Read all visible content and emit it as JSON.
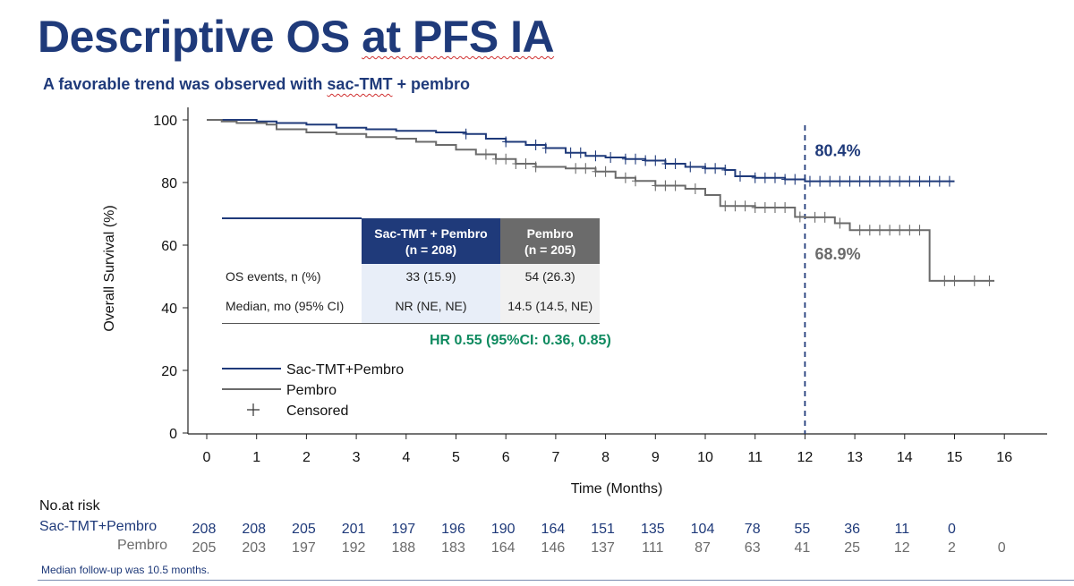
{
  "slide": {
    "title_part1": "Descriptive OS ",
    "title_part2": "at PFS IA",
    "subtitle_part1": "A favorable trend was observed with ",
    "subtitle_part2": "sac-TMT",
    "subtitle_part3": " + pembro"
  },
  "colors": {
    "arm1": "#1f3a7a",
    "arm2": "#6b6b6b",
    "hr_text": "#0e8a5f",
    "table_header1": "#1f3a7a",
    "table_header2": "#6b6b6b"
  },
  "table": {
    "header_col1": "Sac-TMT + Pembro\n(n = 208)",
    "header_col2": "Pembro\n(n = 205)",
    "rows": [
      {
        "label": "OS events, n (%)",
        "col1": "33 (15.9)",
        "col2": "54 (26.3)"
      },
      {
        "label": "Median, mo (95% CI)",
        "col1": "NR (NE, NE)",
        "col2": "14.5 (14.5, NE)"
      }
    ],
    "hr_text": "HR 0.55 (95%CI: 0.36, 0.85)"
  },
  "risk_table": {
    "header": "No.at risk",
    "rows": [
      {
        "label": "Sac-TMT+Pembro",
        "values": [
          "208",
          "208",
          "205",
          "201",
          "197",
          "196",
          "190",
          "164",
          "151",
          "135",
          "104",
          "78",
          "55",
          "36",
          "11",
          "0"
        ]
      },
      {
        "label": "Pembro",
        "values": [
          "205",
          "203",
          "197",
          "192",
          "188",
          "183",
          "164",
          "146",
          "137",
          "111",
          "87",
          "63",
          "41",
          "25",
          "12",
          "2",
          "0"
        ]
      }
    ]
  },
  "footnote": "Median follow-up was 10.5 months.",
  "chart_data": {
    "type": "line",
    "subtype": "kaplan-meier step curve",
    "title": "",
    "xlabel": "Time (Months)",
    "ylabel": "Overall Survival (%)",
    "xlim": [
      0,
      16
    ],
    "ylim": [
      0,
      100
    ],
    "xticks": [
      "0",
      "1",
      "2",
      "3",
      "4",
      "5",
      "6",
      "7",
      "8",
      "9",
      "10",
      "11",
      "12",
      "13",
      "14",
      "15",
      "16"
    ],
    "yticks": [
      "0",
      "20",
      "40",
      "60",
      "80",
      "100"
    ],
    "grid": false,
    "legend_position": "bottom-left",
    "legend": [
      {
        "label": "Sac-TMT+Pembro",
        "marker": "line",
        "series": 0
      },
      {
        "label": "Pembro",
        "marker": "line",
        "series": 1
      },
      {
        "label": "Censored",
        "marker": "plus"
      }
    ],
    "reference_line": {
      "x": 12,
      "style": "dashed"
    },
    "annotations": [
      {
        "text": "80.4%",
        "x": 12.2,
        "y": 89,
        "series": 0
      },
      {
        "text": "68.9%",
        "x": 12.2,
        "y": 56,
        "series": 1
      }
    ],
    "series": [
      {
        "name": "Sac-TMT+Pembro",
        "x": [
          0,
          0.4,
          1.0,
          1.4,
          2.0,
          2.6,
          3.2,
          3.8,
          4.6,
          5.2,
          5.6,
          6.0,
          6.4,
          6.8,
          7.2,
          7.6,
          8.0,
          8.4,
          8.8,
          9.2,
          9.6,
          10.0,
          10.4,
          10.6,
          11.0,
          11.6,
          12.0,
          15.0
        ],
        "y": [
          100,
          100,
          99.5,
          99.0,
          98.5,
          97.5,
          97.0,
          96.5,
          96.0,
          95.5,
          94.0,
          93.0,
          92.0,
          91.0,
          89.5,
          88.5,
          88.0,
          87.5,
          87.0,
          86.0,
          85.0,
          84.5,
          84.0,
          82.0,
          81.5,
          81.0,
          80.4,
          80.4
        ],
        "censored_x": [
          5.2,
          6.0,
          6.6,
          6.8,
          7.3,
          7.5,
          7.8,
          8.1,
          8.4,
          8.6,
          8.8,
          9.0,
          9.2,
          9.4,
          9.7,
          10.0,
          10.2,
          10.4,
          10.7,
          11.0,
          11.2,
          11.4,
          11.6,
          11.8,
          12.1,
          12.3,
          12.5,
          12.7,
          12.9,
          13.1,
          13.3,
          13.5,
          13.7,
          13.9,
          14.1,
          14.3,
          14.5,
          14.7,
          14.9
        ]
      },
      {
        "name": "Pembro",
        "x": [
          0,
          0.3,
          0.6,
          1.2,
          1.4,
          2.0,
          2.6,
          3.2,
          3.8,
          4.2,
          4.6,
          5.0,
          5.4,
          5.8,
          6.2,
          6.6,
          7.2,
          7.8,
          8.2,
          8.6,
          9.0,
          9.6,
          10.0,
          10.3,
          11.0,
          11.8,
          12.0,
          12.6,
          12.9,
          14.5,
          15.8
        ],
        "y": [
          100,
          99.5,
          99.0,
          98.5,
          97.0,
          96.0,
          95.5,
          94.5,
          94.0,
          93.0,
          92.0,
          90.5,
          89.0,
          87.5,
          86.0,
          85.0,
          84.5,
          83.5,
          81.5,
          80.5,
          79.0,
          78.0,
          76.0,
          72.5,
          72.0,
          69.0,
          68.9,
          67.0,
          64.8,
          48.6,
          48.6
        ],
        "censored_x": [
          5.6,
          5.8,
          6.0,
          6.2,
          6.4,
          6.6,
          7.4,
          7.6,
          7.8,
          8.0,
          8.4,
          8.6,
          9.0,
          9.2,
          9.4,
          9.8,
          10.4,
          10.6,
          10.8,
          11.0,
          11.2,
          11.4,
          11.6,
          11.9,
          12.2,
          12.4,
          12.7,
          13.1,
          13.3,
          13.5,
          13.7,
          13.9,
          14.1,
          14.3,
          14.8,
          15.0,
          15.4,
          15.7
        ]
      }
    ]
  }
}
